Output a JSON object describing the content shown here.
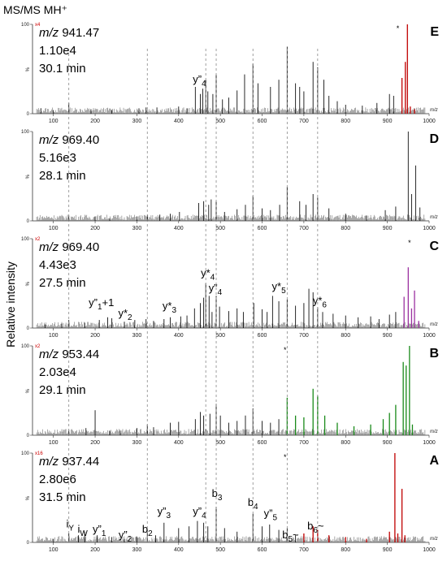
{
  "chart_data": {
    "type": "line",
    "title": "MS/MS MH⁺",
    "ylabel": "Relative intensity",
    "xlabel": "m/z",
    "xlim": [
      50,
      1000
    ],
    "ylim": [
      0,
      100
    ],
    "x_ticks": [
      100,
      200,
      300,
      400,
      500,
      600,
      700,
      800,
      900,
      1000
    ],
    "y_ticks": [
      0,
      100
    ],
    "y_mid_label": "%",
    "reference_lines_mz": [
      137,
      325,
      465,
      490,
      578,
      660,
      733
    ],
    "panels": [
      {
        "id": "E",
        "label": "E",
        "mz_label": "m/z",
        "mz": "941.47",
        "intensity": "1.10e4",
        "time": "30.1 min",
        "magnification": "x4",
        "precursor_marker": "*",
        "precursor_mz": 925,
        "highlight_color": "#c00000",
        "highlight_from": 928,
        "peaks": [
          [
            70,
            6
          ],
          [
            100,
            4
          ],
          [
            137,
            12
          ],
          [
            190,
            5
          ],
          [
            240,
            4
          ],
          [
            305,
            6
          ],
          [
            322,
            7
          ],
          [
            348,
            7
          ],
          [
            400,
            8
          ],
          [
            420,
            6
          ],
          [
            440,
            30
          ],
          [
            452,
            22
          ],
          [
            458,
            28
          ],
          [
            465,
            38
          ],
          [
            470,
            25
          ],
          [
            482,
            22
          ],
          [
            490,
            44
          ],
          [
            505,
            16
          ],
          [
            520,
            18
          ],
          [
            540,
            26
          ],
          [
            558,
            44
          ],
          [
            578,
            56
          ],
          [
            590,
            34
          ],
          [
            620,
            30
          ],
          [
            640,
            38
          ],
          [
            660,
            75
          ],
          [
            680,
            34
          ],
          [
            690,
            30
          ],
          [
            700,
            25
          ],
          [
            722,
            58
          ],
          [
            733,
            52
          ],
          [
            748,
            38
          ],
          [
            760,
            20
          ],
          [
            780,
            14
          ],
          [
            800,
            10
          ],
          [
            840,
            9
          ],
          [
            875,
            12
          ],
          [
            905,
            22
          ],
          [
            915,
            20
          ],
          [
            935,
            40
          ],
          [
            943,
            58
          ],
          [
            948,
            100
          ],
          [
            955,
            8
          ],
          [
            965,
            5
          ]
        ],
        "annotations": [
          {
            "parts": [
              [
                "y”",
                ""
              ],
              [
                "4",
                "sub"
              ]
            ],
            "x": 450,
            "y": 32
          }
        ]
      },
      {
        "id": "D",
        "label": "D",
        "mz_label": "m/z",
        "mz": "969.40",
        "intensity": "5.16e3",
        "time": "28.1 min",
        "magnification": "",
        "precursor_marker": "",
        "precursor_mz": null,
        "highlight_color": "",
        "highlight_from": null,
        "peaks": [
          [
            137,
            6
          ],
          [
            200,
            5
          ],
          [
            235,
            3
          ],
          [
            300,
            5
          ],
          [
            325,
            6
          ],
          [
            355,
            7
          ],
          [
            380,
            8
          ],
          [
            402,
            10
          ],
          [
            448,
            20
          ],
          [
            460,
            22
          ],
          [
            472,
            18
          ],
          [
            478,
            24
          ],
          [
            490,
            22
          ],
          [
            510,
            10
          ],
          [
            540,
            13
          ],
          [
            560,
            18
          ],
          [
            578,
            28
          ],
          [
            600,
            14
          ],
          [
            620,
            12
          ],
          [
            642,
            18
          ],
          [
            660,
            38
          ],
          [
            690,
            22
          ],
          [
            705,
            18
          ],
          [
            722,
            30
          ],
          [
            733,
            26
          ],
          [
            760,
            14
          ],
          [
            800,
            8
          ],
          [
            850,
            6
          ],
          [
            895,
            12
          ],
          [
            920,
            16
          ],
          [
            950,
            100
          ],
          [
            958,
            30
          ],
          [
            968,
            62
          ],
          [
            978,
            15
          ]
        ],
        "annotations": []
      },
      {
        "id": "C",
        "label": "C",
        "mz_label": "m/z",
        "mz": "969.40",
        "intensity": "4.43e3",
        "time": "27.5 min",
        "magnification": "x2",
        "precursor_marker": "*",
        "precursor_mz": 953,
        "highlight_color": "#9b30a0",
        "highlight_from": 935,
        "peaks": [
          [
            80,
            4
          ],
          [
            120,
            5
          ],
          [
            137,
            9
          ],
          [
            175,
            6
          ],
          [
            210,
            9
          ],
          [
            230,
            12
          ],
          [
            240,
            11
          ],
          [
            270,
            7
          ],
          [
            295,
            9
          ],
          [
            322,
            10
          ],
          [
            340,
            8
          ],
          [
            365,
            10
          ],
          [
            380,
            12
          ],
          [
            405,
            13
          ],
          [
            420,
            14
          ],
          [
            438,
            22
          ],
          [
            452,
            28
          ],
          [
            460,
            34
          ],
          [
            465,
            50
          ],
          [
            473,
            36
          ],
          [
            480,
            18
          ],
          [
            490,
            36
          ],
          [
            498,
            24
          ],
          [
            520,
            19
          ],
          [
            540,
            22
          ],
          [
            555,
            18
          ],
          [
            580,
            28
          ],
          [
            600,
            21
          ],
          [
            612,
            18
          ],
          [
            625,
            36
          ],
          [
            640,
            30
          ],
          [
            660,
            32
          ],
          [
            680,
            25
          ],
          [
            700,
            28
          ],
          [
            712,
            44
          ],
          [
            722,
            40
          ],
          [
            733,
            23
          ],
          [
            745,
            18
          ],
          [
            770,
            16
          ],
          [
            800,
            14
          ],
          [
            830,
            12
          ],
          [
            860,
            13
          ],
          [
            880,
            10
          ],
          [
            905,
            15
          ],
          [
            920,
            18
          ],
          [
            940,
            35
          ],
          [
            950,
            68
          ],
          [
            958,
            22
          ],
          [
            965,
            42
          ],
          [
            975,
            8
          ]
        ],
        "annotations": [
          {
            "parts": [
              [
                "y*",
                ""
              ],
              [
                "4",
                "sub"
              ]
            ],
            "x": 470,
            "y": 55
          },
          {
            "parts": [
              [
                "y”",
                ""
              ],
              [
                "4",
                "sub"
              ]
            ],
            "x": 488,
            "y": 38
          },
          {
            "parts": [
              [
                "y*",
                ""
              ],
              [
                "5",
                "sub"
              ]
            ],
            "x": 640,
            "y": 40
          },
          {
            "parts": [
              [
                "y*",
                ""
              ],
              [
                "6",
                "sub"
              ]
            ],
            "x": 738,
            "y": 24
          },
          {
            "parts": [
              [
                "y*",
                ""
              ],
              [
                "3",
                "sub"
              ]
            ],
            "x": 378,
            "y": 18
          },
          {
            "parts": [
              [
                "y”",
                ""
              ],
              [
                "1",
                "sub"
              ],
              [
                "+1",
                ""
              ]
            ],
            "x": 215,
            "y": 22
          },
          {
            "parts": [
              [
                "y*",
                ""
              ],
              [
                "2",
                "sub"
              ]
            ],
            "x": 272,
            "y": 10
          }
        ]
      },
      {
        "id": "B",
        "label": "B",
        "mz_label": "m/z",
        "mz": "953.44",
        "intensity": "2.03e4",
        "time": "29.1 min",
        "magnification": "x2",
        "precursor_marker": "*",
        "precursor_mz": 655,
        "highlight_color": "#1a8a1a",
        "highlight_from": 650,
        "peaks": [
          [
            137,
            6
          ],
          [
            178,
            8
          ],
          [
            200,
            28
          ],
          [
            235,
            5
          ],
          [
            260,
            5
          ],
          [
            300,
            8
          ],
          [
            325,
            12
          ],
          [
            340,
            9
          ],
          [
            380,
            14
          ],
          [
            400,
            15
          ],
          [
            440,
            18
          ],
          [
            452,
            26
          ],
          [
            460,
            22
          ],
          [
            475,
            24
          ],
          [
            490,
            35
          ],
          [
            500,
            22
          ],
          [
            520,
            14
          ],
          [
            540,
            16
          ],
          [
            560,
            22
          ],
          [
            578,
            30
          ],
          [
            600,
            16
          ],
          [
            620,
            14
          ],
          [
            640,
            18
          ],
          [
            660,
            42
          ],
          [
            680,
            22
          ],
          [
            700,
            20
          ],
          [
            722,
            52
          ],
          [
            733,
            44
          ],
          [
            750,
            22
          ],
          [
            780,
            14
          ],
          [
            820,
            10
          ],
          [
            860,
            12
          ],
          [
            890,
            18
          ],
          [
            905,
            25
          ],
          [
            920,
            34
          ],
          [
            938,
            82
          ],
          [
            945,
            78
          ],
          [
            953,
            100
          ],
          [
            960,
            12
          ]
        ],
        "annotations": []
      },
      {
        "id": "A",
        "label": "A",
        "mz_label": "m/z",
        "mz": "937.44",
        "intensity": "2.80e6",
        "time": "31.5 min",
        "magnification": "x16",
        "precursor_marker": "*",
        "precursor_mz": 655,
        "highlight_color": "#c00000",
        "highlight_from": 695,
        "peaks": [
          [
            100,
            4
          ],
          [
            137,
            10
          ],
          [
            160,
            8
          ],
          [
            175,
            12
          ],
          [
            205,
            8
          ],
          [
            240,
            6
          ],
          [
            270,
            4
          ],
          [
            300,
            6
          ],
          [
            325,
            14
          ],
          [
            345,
            8
          ],
          [
            365,
            22
          ],
          [
            400,
            16
          ],
          [
            425,
            18
          ],
          [
            445,
            24
          ],
          [
            460,
            22
          ],
          [
            470,
            18
          ],
          [
            490,
            40
          ],
          [
            510,
            16
          ],
          [
            540,
            12
          ],
          [
            578,
            32
          ],
          [
            600,
            18
          ],
          [
            618,
            20
          ],
          [
            640,
            14
          ],
          [
            660,
            16
          ],
          [
            680,
            8
          ],
          [
            700,
            10
          ],
          [
            722,
            18
          ],
          [
            733,
            14
          ],
          [
            760,
            8
          ],
          [
            800,
            6
          ],
          [
            850,
            4
          ],
          [
            905,
            12
          ],
          [
            918,
            100
          ],
          [
            925,
            10
          ],
          [
            935,
            60
          ],
          [
            942,
            8
          ]
        ],
        "annotations": [
          {
            "parts": [
              [
                "b",
                ""
              ],
              [
                "3",
                "sub"
              ]
            ],
            "x": 492,
            "y": 48
          },
          {
            "parts": [
              [
                "b",
                ""
              ],
              [
                "4",
                "sub"
              ]
            ],
            "x": 578,
            "y": 38
          },
          {
            "parts": [
              [
                "y”",
                ""
              ],
              [
                "5",
                "sub"
              ]
            ],
            "x": 620,
            "y": 26
          },
          {
            "parts": [
              [
                "b",
                ""
              ],
              [
                "6",
                "sub"
              ],
              [
                "~",
                ""
              ]
            ],
            "x": 728,
            "y": 12
          },
          {
            "parts": [
              [
                "b",
                ""
              ],
              [
                "5",
                "sub"
              ],
              [
                "~",
                ""
              ]
            ],
            "x": 668,
            "y": 2
          },
          {
            "parts": [
              [
                "y”",
                ""
              ],
              [
                "3",
                "sub"
              ]
            ],
            "x": 365,
            "y": 28
          },
          {
            "parts": [
              [
                "y”",
                ""
              ],
              [
                "4",
                "sub"
              ]
            ],
            "x": 450,
            "y": 28
          },
          {
            "parts": [
              [
                "b",
                ""
              ],
              [
                "2",
                "sub"
              ]
            ],
            "x": 325,
            "y": 8
          },
          {
            "parts": [
              [
                "y”",
                ""
              ],
              [
                "2",
                "sub"
              ]
            ],
            "x": 272,
            "y": 2
          },
          {
            "parts": [
              [
                "y”",
                ""
              ],
              [
                "1",
                "sub"
              ]
            ],
            "x": 210,
            "y": 8
          },
          {
            "parts": [
              [
                "i",
                ""
              ],
              [
                "W",
                "sub"
              ]
            ],
            "x": 170,
            "y": 8
          },
          {
            "parts": [
              [
                "i",
                ""
              ],
              [
                "Y",
                "sub"
              ]
            ],
            "x": 140,
            "y": 14
          }
        ]
      }
    ]
  }
}
